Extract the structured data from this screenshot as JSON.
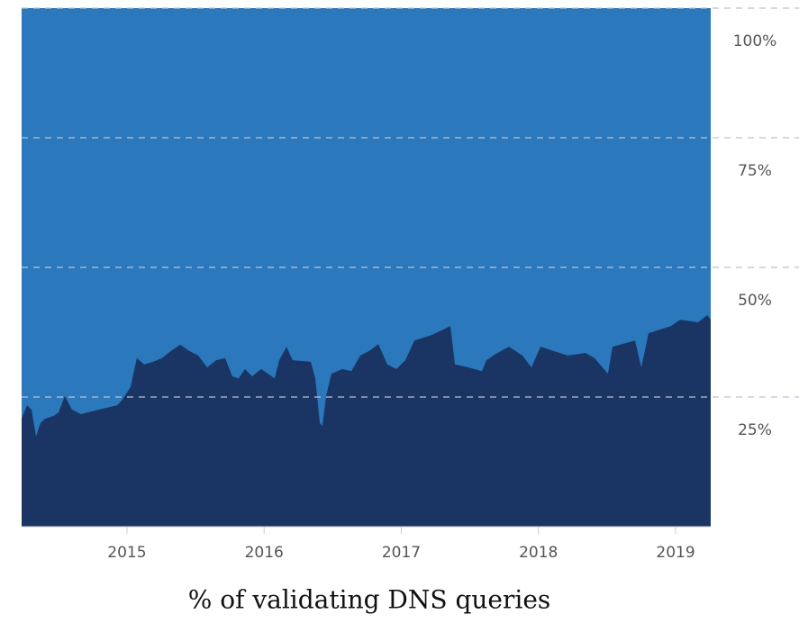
{
  "chart_data": {
    "type": "area",
    "title": "% of validating DNS queries",
    "plot_color": "#2b78bd",
    "series": [
      {
        "color": "#1a3563",
        "x": [
          2014.232,
          2014.271,
          2014.304,
          2014.337,
          2014.37,
          2014.402,
          2014.468,
          2014.501,
          2014.547,
          2014.599,
          2014.665,
          2014.796,
          2014.928,
          2014.961,
          2015.026,
          2015.072,
          2015.125,
          2015.191,
          2015.256,
          2015.322,
          2015.388,
          2015.453,
          2015.519,
          2015.585,
          2015.65,
          2015.716,
          2015.768,
          2015.814,
          2015.86,
          2015.913,
          2015.979,
          2016.077,
          2016.11,
          2016.163,
          2016.208,
          2016.34,
          2016.373,
          2016.406,
          2016.425,
          2016.452,
          2016.491,
          2016.57,
          2016.636,
          2016.701,
          2016.767,
          2016.833,
          2016.898,
          2016.964,
          2017.03,
          2017.095,
          2017.227,
          2017.358,
          2017.391,
          2017.49,
          2017.588,
          2017.621,
          2017.687,
          2017.785,
          2017.883,
          2017.949,
          2018.015,
          2018.212,
          2018.343,
          2018.409,
          2018.507,
          2018.54,
          2018.704,
          2018.75,
          2018.803,
          2018.967,
          2019.033,
          2019.164,
          2019.23,
          2019.256
        ],
        "values": [
          20.8,
          23.4,
          22.6,
          17.4,
          20.0,
          20.8,
          21.4,
          22.0,
          25.2,
          22.6,
          21.7,
          22.6,
          23.4,
          24.3,
          26.9,
          32.5,
          31.3,
          31.8,
          32.5,
          33.9,
          35.1,
          33.9,
          33.0,
          30.7,
          32.1,
          32.5,
          29.0,
          28.6,
          30.4,
          29.0,
          30.4,
          28.6,
          32.1,
          34.7,
          32.1,
          31.8,
          28.6,
          20.0,
          19.4,
          25.2,
          29.5,
          30.4,
          30.0,
          33.0,
          33.9,
          35.2,
          31.3,
          30.4,
          32.1,
          35.9,
          37.0,
          38.7,
          31.3,
          30.7,
          30.0,
          32.1,
          33.3,
          34.7,
          33.0,
          30.7,
          34.7,
          33.0,
          33.5,
          32.5,
          29.5,
          34.7,
          35.9,
          30.7,
          37.3,
          38.7,
          39.9,
          39.4,
          40.8,
          39.9
        ]
      }
    ],
    "xlim": [
      2014.232,
      2019.256
    ],
    "xticks": [
      2015,
      2016,
      2017,
      2018,
      2019
    ],
    "ylim": [
      0,
      100
    ],
    "yticks": [
      {
        "value": 25,
        "label": "25%"
      },
      {
        "value": 50,
        "label": "50%"
      },
      {
        "value": 75,
        "label": "75%"
      },
      {
        "value": 100,
        "label": "100%"
      }
    ],
    "grid": true
  }
}
